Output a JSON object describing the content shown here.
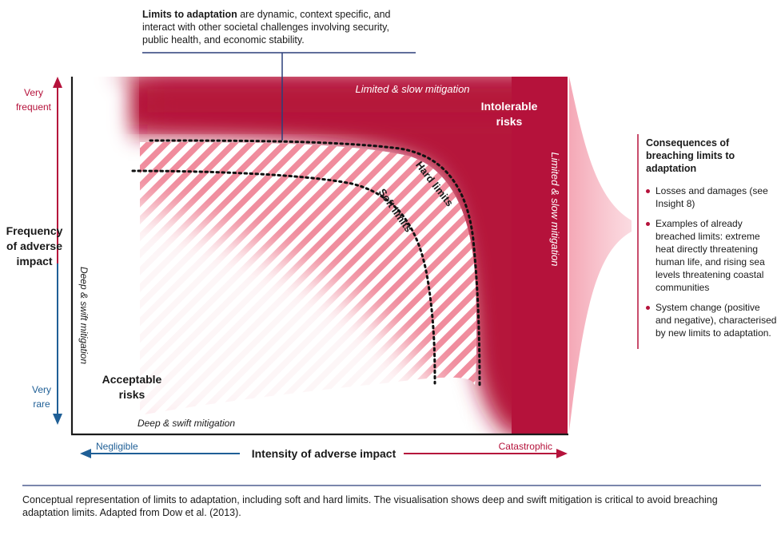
{
  "callout": {
    "title": "Limits to adaptation",
    "text": " are dynamic, context specific, and interact with other societal challenges involving security, public health, and economic stability."
  },
  "zones": {
    "intolerable": "Intolerable risks",
    "acceptable": "Acceptable risks",
    "limited_top": "Limited & slow mitigation",
    "limited_right": "Limited & slow mitigation",
    "deep_bottom": "Deep & swift mitigation",
    "deep_left": "Deep & swift mitigation"
  },
  "curves": {
    "hard": "Hard limits",
    "soft": "Soft limits"
  },
  "y_axis": {
    "label_line1": "Frequency",
    "label_line2": "of adverse",
    "label_line3": "impact",
    "top_line1": "Very",
    "top_line2": "frequent",
    "bottom_line1": "Very",
    "bottom_line2": "rare"
  },
  "x_axis": {
    "label": "Intensity of adverse impact",
    "left": "Negligible",
    "right": "Catastrophic"
  },
  "consequences": {
    "title": "Consequences of breaching limits to adaptation",
    "items": [
      "Losses and damages (see Insight 8)",
      "Examples of already breached limits: extreme heat directly threatening human life, and rising sea levels threatening coastal communities",
      "System change (positive and negative), characterised by new limits to adaptation."
    ]
  },
  "caption": "Conceptual representation of limits to adaptation, including soft and hard limits. The visualisation shows deep and swift mitigation is critical to avoid breaching adaptation limits. Adapted from Dow et al. (2013).",
  "colors": {
    "crimson": "#b5123b",
    "blue": "#1f5f96",
    "rule": "#2b3f7a"
  }
}
